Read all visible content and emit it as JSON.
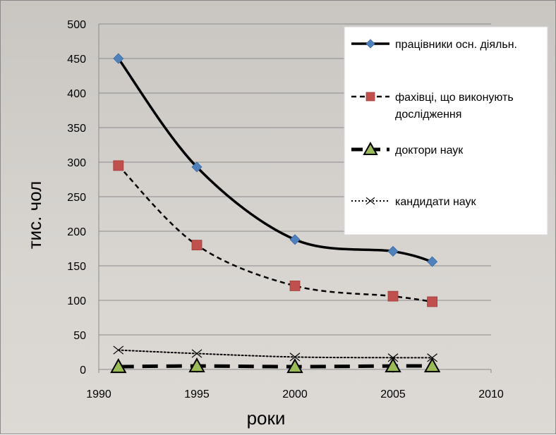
{
  "chart_data": {
    "type": "line",
    "title": "",
    "xlabel": "роки",
    "ylabel": "тис. чол",
    "xlim": [
      1990,
      2010
    ],
    "ylim": [
      0,
      500
    ],
    "xticks": [
      1990,
      1995,
      2000,
      2005,
      2010
    ],
    "yticks": [
      0,
      50,
      100,
      150,
      200,
      250,
      300,
      350,
      400,
      450,
      500
    ],
    "grid": "horizontal",
    "legend_position": "top-right",
    "series": [
      {
        "name": "працівники осн. діяльн.",
        "x": [
          1991,
          1995,
          2000,
          2005,
          2007
        ],
        "y": [
          450,
          293,
          188,
          171,
          156
        ],
        "color": "#4f81bd",
        "line": "solid",
        "marker": "diamond"
      },
      {
        "name": "фахівці, що виконують дослідження",
        "x": [
          1991,
          1995,
          2000,
          2005,
          2007
        ],
        "y": [
          295,
          180,
          121,
          106,
          98
        ],
        "color": "#c0504d",
        "line": "dashed",
        "marker": "square"
      },
      {
        "name": "доктори наук",
        "x": [
          1991,
          1995,
          2000,
          2005,
          2007
        ],
        "y": [
          4,
          5,
          4,
          5,
          5
        ],
        "color": "#9bbb59",
        "line": "long-dash",
        "marker": "triangle"
      },
      {
        "name": "кандидати наук",
        "x": [
          1991,
          1995,
          2000,
          2005,
          2007
        ],
        "y": [
          28,
          23,
          18,
          17,
          17
        ],
        "color": "#000000",
        "line": "dotted",
        "marker": "x"
      }
    ]
  }
}
